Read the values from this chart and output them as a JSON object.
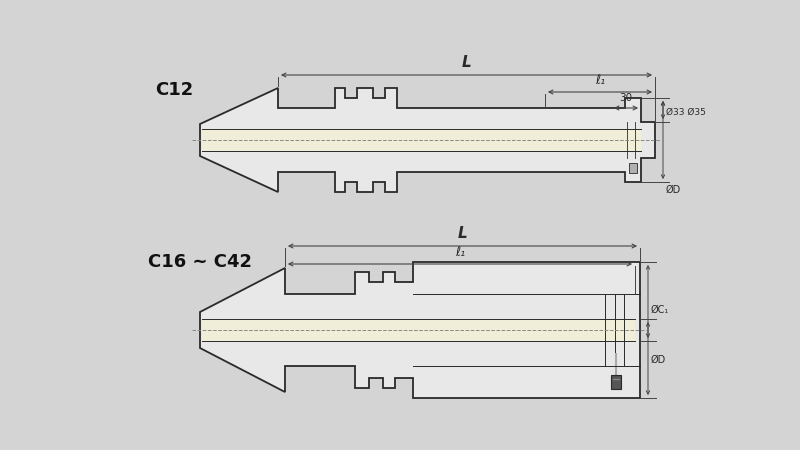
{
  "bg_color": "#d4d4d4",
  "line_color": "#2a2a2a",
  "fill_color_body": "#e8e8e8",
  "fill_color_bore": "#f0edd8",
  "fill_color_shank": "#e0ddd0",
  "dim_color": "#444444",
  "title_c12": "C12",
  "title_c16_c42": "C16 ~ C42",
  "label_L": "L",
  "label_l1": "ℓ₁",
  "label_30": "30",
  "label_d33d35": "Ø33 Ø35",
  "label_dD": "ØD",
  "label_dC1": "ØC₁",
  "font_size_title": 13,
  "font_size_dim": 8,
  "font_size_small": 7
}
